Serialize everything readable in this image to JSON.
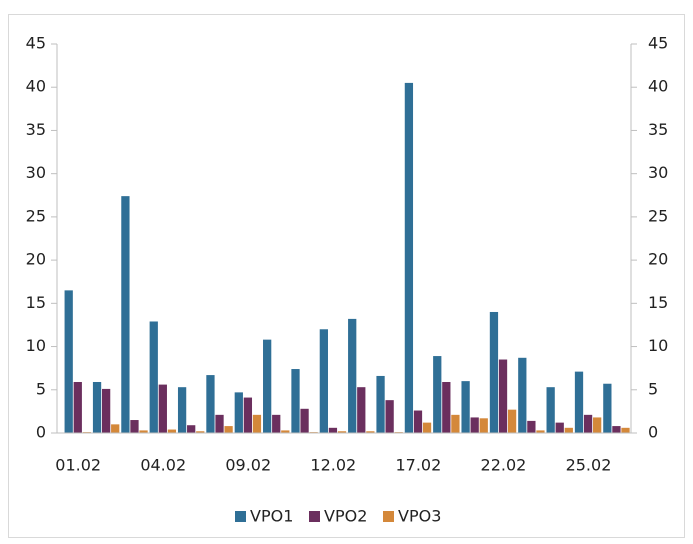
{
  "chart_data": {
    "type": "bar",
    "categories": [
      "01.02",
      null,
      null,
      "04.02",
      null,
      null,
      "09.02",
      null,
      null,
      "12.02",
      null,
      null,
      "17.02",
      null,
      null,
      "22.02",
      null,
      null,
      "25.02",
      null
    ],
    "series": [
      {
        "name": "VPO1",
        "color": "#2f6f96",
        "values": [
          16.5,
          5.9,
          27.4,
          12.9,
          5.3,
          6.7,
          4.7,
          10.8,
          7.4,
          12.0,
          13.2,
          6.6,
          40.5,
          8.9,
          6.0,
          14.0,
          8.7,
          5.3,
          7.1,
          5.7
        ]
      },
      {
        "name": "VPO2",
        "color": "#6b2f5e",
        "values": [
          5.9,
          5.1,
          1.5,
          5.6,
          0.9,
          2.1,
          4.1,
          2.1,
          2.8,
          0.6,
          5.3,
          3.8,
          2.6,
          5.9,
          1.8,
          8.5,
          1.4,
          1.2,
          2.1,
          0.8
        ]
      },
      {
        "name": "VPO3",
        "color": "#d4883a",
        "values": [
          0.1,
          1.0,
          0.3,
          0.4,
          0.2,
          0.8,
          2.1,
          0.3,
          0.1,
          0.2,
          0.2,
          0.1,
          1.2,
          2.1,
          1.7,
          2.7,
          0.3,
          0.6,
          1.8,
          0.6
        ]
      }
    ],
    "ylim": [
      0,
      45
    ],
    "yticks": [
      0,
      5,
      10,
      15,
      20,
      25,
      30,
      35,
      40,
      45
    ],
    "y2lim": [
      0,
      45
    ],
    "y2ticks": [
      0,
      5,
      10,
      15,
      20,
      25,
      30,
      35,
      40,
      45
    ],
    "legend": "bottom"
  }
}
